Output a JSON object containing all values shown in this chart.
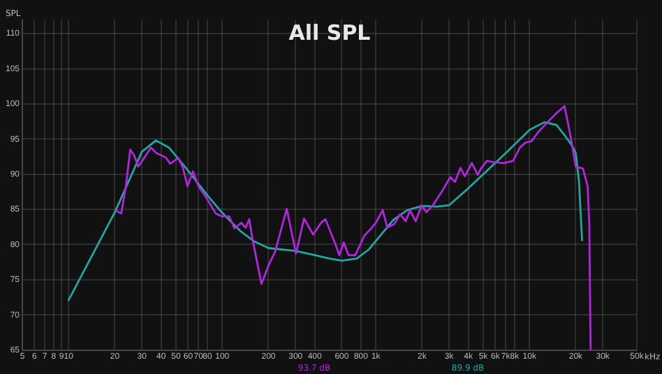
{
  "chart_data": {
    "type": "line",
    "title": "All SPL",
    "ylabel": "SPL",
    "xlim": [
      5,
      50000
    ],
    "ylim": [
      65,
      112
    ],
    "log": "x",
    "grid": true,
    "legend": false,
    "marker": "none",
    "line_style": "solid",
    "xticks": [
      5,
      6,
      7,
      8,
      9,
      10,
      20,
      30,
      40,
      50,
      60,
      70,
      80,
      100,
      200,
      300,
      400,
      600,
      800,
      {
        "value": 1000,
        "label": "1k"
      },
      {
        "value": 2000,
        "label": "2k"
      },
      {
        "value": 3000,
        "label": "3k"
      },
      {
        "value": 4000,
        "label": "4k"
      },
      {
        "value": 5000,
        "label": "5k"
      },
      {
        "value": 6000,
        "label": "6k"
      },
      {
        "value": 7000,
        "label": "7k"
      },
      {
        "value": 8000,
        "label": "8k"
      },
      {
        "value": 10000,
        "label": "10k"
      },
      {
        "value": 20000,
        "label": "20k"
      },
      {
        "value": 30000,
        "label": "30k"
      },
      {
        "value": 50000,
        "label": "50k"
      }
    ],
    "xlabel": "kHz",
    "yticks": [
      65,
      70,
      75,
      80,
      85,
      90,
      95,
      100,
      105,
      110
    ],
    "series": [
      {
        "color": "#b026e0",
        "x": [
          20.5,
          22,
          23.6,
          25.2,
          26.7,
          28.4,
          31,
          34.3,
          37.3,
          42.8,
          45.8,
          51.8,
          55.5,
          59.4,
          64.5,
          70,
          79.2,
          90.8,
          100,
          111,
          120,
          133,
          142,
          150,
          157,
          180,
          200,
          221,
          263,
          302,
          341,
          391,
          440,
          470,
          540,
          578,
          619,
          663,
          735,
          843,
          934,
          1000,
          1109,
          1187,
          1315,
          1438,
          1563,
          1671,
          1816,
          1986,
          2128,
          2356,
          2700,
          3055,
          3273,
          3556,
          3802,
          4214,
          4603,
          4833,
          5280,
          5937,
          6808,
          7816,
          8665,
          9405,
          10300,
          11400,
          13100,
          15000,
          16900,
          18400,
          20000,
          22300,
          23900,
          24500,
          25000
        ],
        "values": [
          84.8,
          84.4,
          88.3,
          93.5,
          92.7,
          91.1,
          92.3,
          93.8,
          93,
          92.4,
          91.5,
          92.3,
          90.9,
          88.3,
          90.4,
          88.3,
          86.6,
          84.4,
          84,
          84,
          82.3,
          83.1,
          82.4,
          83.6,
          80.9,
          74.4,
          77,
          79,
          85.1,
          78.7,
          83.7,
          81.4,
          83.1,
          83.6,
          80.3,
          78.5,
          80.3,
          78.5,
          78.5,
          81.3,
          82.3,
          83.1,
          84.9,
          82.4,
          82.9,
          84.3,
          83.3,
          84.9,
          83.3,
          85.6,
          84.6,
          85.6,
          87.6,
          89.6,
          88.9,
          90.9,
          89.7,
          91.6,
          89.9,
          90.8,
          91.9,
          91.7,
          91.6,
          91.9,
          93.8,
          94.5,
          94.7,
          96,
          97.4,
          98.7,
          99.7,
          95.7,
          91.1,
          90.8,
          88.3,
          83.1,
          65
        ]
      },
      {
        "color": "#22a6a0",
        "x": [
          10,
          20,
          30,
          37,
          45,
          60,
          80,
          100,
          130,
          160,
          200,
          300,
          400,
          500,
          600,
          750,
          900,
          1000,
          1300,
          1600,
          2000,
          2500,
          3000,
          4000,
          5000,
          7000,
          10000,
          12500,
          15000,
          17000,
          19000,
          20000,
          21000,
          22000
        ],
        "values": [
          72.1,
          84.6,
          93.2,
          94.8,
          93.8,
          90.5,
          87,
          84.5,
          82,
          80.5,
          79.5,
          79.1,
          78.5,
          78,
          77.7,
          78,
          79.3,
          80.5,
          83.5,
          84.9,
          85.5,
          85.4,
          85.6,
          88,
          90,
          93,
          96.3,
          97.4,
          97,
          95.5,
          94,
          93,
          89,
          80.6
        ]
      }
    ],
    "annotations": [
      "93.7 dB",
      "89.9 dB"
    ]
  }
}
